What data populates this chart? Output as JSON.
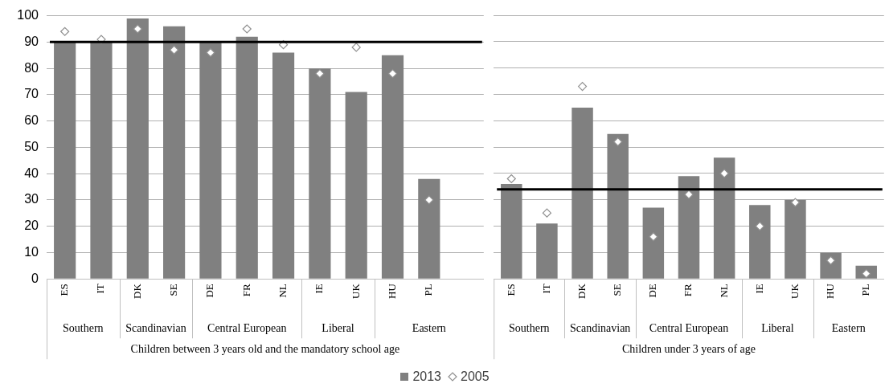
{
  "chart_data": [
    {
      "type": "bar",
      "categories": [
        "ES",
        "IT",
        "DK",
        "SE",
        "DE",
        "FR",
        "NL",
        "IE",
        "UK",
        "HU",
        "PL",
        null
      ],
      "series": [
        {
          "name": "2013",
          "color": "#808080",
          "values": [
            90,
            90,
            99,
            96,
            90,
            92,
            86,
            80,
            71,
            85,
            38,
            null
          ]
        },
        {
          "name": "2005",
          "type": "scatter",
          "color": "#909090",
          "marker": "diamond",
          "values": [
            94,
            91,
            95,
            87,
            86,
            95,
            89,
            78,
            88,
            78,
            30,
            null
          ]
        }
      ],
      "xlabel": "Children between 3 years old and the mandatory school age",
      "annotations": [
        "Southern",
        "Scandinavian",
        "Central European",
        "Liberal",
        "Eastern"
      ],
      "ref_lines": [
        {
          "axis": "y",
          "value": 90,
          "color": "#000000"
        }
      ],
      "ylim": [
        0,
        100
      ],
      "yticks": [
        0,
        10,
        20,
        30,
        40,
        50,
        60,
        70,
        80,
        90,
        100
      ],
      "grid": "y",
      "legend": "bottom"
    },
    {
      "type": "bar",
      "categories": [
        "ES",
        "IT",
        "DK",
        "SE",
        "DE",
        "FR",
        "NL",
        "IE",
        "UK",
        "HU",
        "PL"
      ],
      "series": [
        {
          "name": "2013",
          "color": "#808080",
          "values": [
            36,
            21,
            65,
            55,
            27,
            39,
            46,
            28,
            30,
            10,
            5
          ]
        },
        {
          "name": "2005",
          "type": "scatter",
          "color": "#909090",
          "marker": "diamond",
          "values": [
            38,
            25,
            73,
            52,
            16,
            32,
            40,
            20,
            29,
            7,
            2
          ]
        }
      ],
      "xlabel": "Children under 3 years of age",
      "annotations": [
        "Southern",
        "Scandinavian",
        "Central European",
        "Liberal",
        "Eastern"
      ],
      "ref_lines": [
        {
          "axis": "y",
          "value": 34,
          "color": "#000000"
        }
      ],
      "ylim": [
        0,
        100
      ],
      "yticks": [
        0,
        10,
        20,
        30,
        40,
        50,
        60,
        70,
        80,
        90,
        100
      ],
      "grid": "y",
      "tick_labels": "x",
      "legend": false
    }
  ]
}
